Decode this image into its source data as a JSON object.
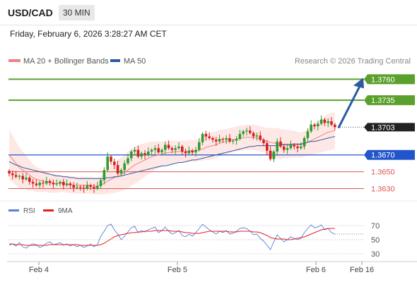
{
  "header": {
    "pair": "USD/CAD",
    "timeframe": "30 MIN",
    "datetime": "Friday, February 6, 2026 3:28:27 AM CET"
  },
  "legend": {
    "ma20_label": "MA 20 + Bollinger Bands",
    "ma20_color": "#f08080",
    "ma50_label": "MA 50",
    "ma50_color": "#2a5aa0",
    "copyright": "Research © 2026 Trading Central"
  },
  "rsi_legend": {
    "rsi_label": "RSI",
    "rsi_color": "#5b7fd6",
    "ma9_label": "9MA",
    "ma9_color": "#e02020"
  },
  "chart_data": [
    {
      "type": "candlestick",
      "title": "USD/CAD 30 MIN",
      "y_range": [
        1.3617,
        1.3772
      ],
      "levels": [
        {
          "value": "1.3760",
          "kind": "resistance",
          "color": "#5aa02c"
        },
        {
          "value": "1.3735",
          "kind": "resistance",
          "color": "#5aa02c"
        },
        {
          "value": "1.3703",
          "kind": "current",
          "color": "#222222"
        },
        {
          "value": "1.3670",
          "kind": "pivot",
          "color": "#2255cc"
        },
        {
          "value": "1.3650",
          "kind": "support",
          "color": "#e05555"
        },
        {
          "value": "1.3630",
          "kind": "support",
          "color": "#e05555"
        }
      ],
      "arrow": {
        "from": 1.3702,
        "to": 1.376,
        "direction": "up",
        "color": "#2a5aa0"
      },
      "x_ticks": [
        "Feb 4",
        "Feb 5",
        "Feb 6",
        "Feb 16"
      ],
      "closes": [
        1.3648,
        1.3646,
        1.3644,
        1.3645,
        1.3641,
        1.3643,
        1.3638,
        1.3636,
        1.3634,
        1.3637,
        1.3636,
        1.3639,
        1.3637,
        1.3635,
        1.3636,
        1.3638,
        1.3634,
        1.3636,
        1.3634,
        1.3631,
        1.3632,
        1.3631,
        1.363,
        1.3634,
        1.3632,
        1.363,
        1.3633,
        1.364,
        1.3652,
        1.3668,
        1.3662,
        1.3658,
        1.3648,
        1.3652,
        1.366,
        1.3666,
        1.3674,
        1.3676,
        1.3668,
        1.3672,
        1.367,
        1.3674,
        1.3676,
        1.3678,
        1.3673,
        1.3676,
        1.3682,
        1.3678,
        1.3676,
        1.3678,
        1.368,
        1.3674,
        1.3672,
        1.3675,
        1.3673,
        1.3676,
        1.3685,
        1.3695,
        1.3692,
        1.369,
        1.3688,
        1.3686,
        1.3689,
        1.3688,
        1.369,
        1.3686,
        1.3687,
        1.3689,
        1.3695,
        1.3698,
        1.3699,
        1.3696,
        1.3692,
        1.3693,
        1.3688,
        1.3684,
        1.3675,
        1.3665,
        1.3674,
        1.3686,
        1.368,
        1.3676,
        1.3678,
        1.3682,
        1.368,
        1.3678,
        1.368,
        1.369,
        1.3698,
        1.3706,
        1.3704,
        1.3707,
        1.3712,
        1.3708,
        1.371,
        1.3706,
        1.3703
      ],
      "ma20": [
        1.367,
        1.3665,
        1.366,
        1.3655,
        1.3652,
        1.3649,
        1.3646,
        1.3643,
        1.3641,
        1.364,
        1.3639,
        1.3638,
        1.3637,
        1.3636,
        1.3636,
        1.3636,
        1.3636,
        1.3635,
        1.3635,
        1.3634,
        1.3634,
        1.3634,
        1.3634,
        1.3634,
        1.3634,
        1.3633,
        1.3633,
        1.3634,
        1.3636,
        1.3639,
        1.3641,
        1.3643,
        1.3645,
        1.3647,
        1.3649,
        1.3652,
        1.3655,
        1.3658,
        1.366,
        1.3662,
        1.3664,
        1.3666,
        1.3668,
        1.3669,
        1.367,
        1.3671,
        1.3672,
        1.3673,
        1.3673,
        1.3674,
        1.3674,
        1.3674,
        1.3674,
        1.3675,
        1.3675,
        1.3675,
        1.3676,
        1.3677,
        1.3679,
        1.368,
        1.3681,
        1.3682,
        1.3684,
        1.3685,
        1.3686,
        1.3687,
        1.3688,
        1.3689,
        1.369,
        1.369,
        1.3691,
        1.3691,
        1.3691,
        1.369,
        1.3689,
        1.3688,
        1.3686,
        1.3685,
        1.3684,
        1.3684,
        1.3683,
        1.3683,
        1.3683,
        1.3683,
        1.3683,
        1.3682,
        1.3682,
        1.3683,
        1.3685,
        1.3687,
        1.3689,
        1.3691,
        1.3693,
        1.3695,
        1.3697,
        1.3698,
        1.3699
      ],
      "ma50": [
        1.3662,
        1.366,
        1.3658,
        1.3657,
        1.3655,
        1.3654,
        1.3653,
        1.3652,
        1.3651,
        1.365,
        1.3649,
        1.3648,
        1.3647,
        1.3646,
        1.3645,
        1.3645,
        1.3644,
        1.3644,
        1.3643,
        1.3643,
        1.3642,
        1.3642,
        1.3642,
        1.3642,
        1.3642,
        1.3642,
        1.3642,
        1.3642,
        1.3642,
        1.3643,
        1.3643,
        1.3644,
        1.3644,
        1.3645,
        1.3646,
        1.3647,
        1.3648,
        1.3649,
        1.365,
        1.3651,
        1.3652,
        1.3653,
        1.3654,
        1.3655,
        1.3656,
        1.3657,
        1.3657,
        1.3658,
        1.3659,
        1.366,
        1.3661,
        1.3661,
        1.3662,
        1.3663,
        1.3664,
        1.3664,
        1.3665,
        1.3666,
        1.3667,
        1.3668,
        1.3669,
        1.367,
        1.3671,
        1.3672,
        1.3673,
        1.3674,
        1.3675,
        1.3676,
        1.3677,
        1.3678,
        1.3679,
        1.368,
        1.368,
        1.3681,
        1.3681,
        1.3681,
        1.3681,
        1.3681,
        1.3681,
        1.3681,
        1.3682,
        1.3682,
        1.3682,
        1.3682,
        1.3683,
        1.3683,
        1.3683,
        1.3684,
        1.3685,
        1.3686,
        1.3686,
        1.3687,
        1.3688,
        1.3689,
        1.369,
        1.3691,
        1.3692
      ],
      "band_width": [
        30,
        28,
        26,
        24,
        22,
        20,
        18,
        16,
        15,
        14,
        13,
        12,
        12,
        11,
        11,
        10,
        10,
        10,
        10,
        10,
        10,
        10,
        10,
        10,
        10,
        10,
        10,
        11,
        13,
        15,
        17,
        18,
        19,
        20,
        21,
        22,
        22,
        22,
        22,
        21,
        20,
        19,
        18,
        17,
        16,
        15,
        15,
        14,
        14,
        13,
        13,
        13,
        13,
        13,
        13,
        13,
        13,
        14,
        15,
        16,
        16,
        16,
        16,
        15,
        15,
        15,
        15,
        15,
        15,
        15,
        15,
        15,
        15,
        15,
        15,
        15,
        16,
        17,
        18,
        18,
        18,
        17,
        17,
        16,
        16,
        15,
        15,
        15,
        16,
        17,
        18,
        19,
        20,
        21,
        22,
        22,
        22
      ]
    },
    {
      "type": "line",
      "title": "RSI",
      "y_ticks": [
        "70",
        "50",
        "30"
      ],
      "y_range": [
        20,
        80
      ],
      "series": [
        {
          "name": "RSI",
          "values": [
            42,
            44,
            41,
            46,
            40,
            38,
            42,
            44,
            43,
            39,
            41,
            45,
            47,
            43,
            44,
            46,
            42,
            44,
            41,
            43,
            40,
            42,
            39,
            41,
            44,
            40,
            43,
            55,
            62,
            70,
            72,
            64,
            58,
            50,
            55,
            61,
            67,
            69,
            60,
            63,
            61,
            64,
            66,
            68,
            60,
            63,
            68,
            62,
            58,
            60,
            63,
            56,
            54,
            58,
            55,
            60,
            66,
            72,
            68,
            64,
            61,
            58,
            62,
            60,
            63,
            58,
            59,
            62,
            66,
            67,
            66,
            62,
            57,
            58,
            52,
            48,
            42,
            36,
            47,
            57,
            52,
            47,
            50,
            54,
            52,
            50,
            52,
            60,
            66,
            71,
            67,
            68,
            71,
            64,
            66,
            60,
            58
          ]
        },
        {
          "name": "9MA",
          "values": [
            44,
            44,
            43,
            43,
            43,
            42,
            42,
            42,
            42,
            42,
            42,
            42,
            43,
            43,
            43,
            43,
            43,
            43,
            43,
            43,
            43,
            42,
            42,
            42,
            42,
            42,
            42,
            43,
            45,
            48,
            51,
            54,
            56,
            57,
            58,
            59,
            60,
            60,
            61,
            61,
            62,
            62,
            62,
            63,
            63,
            63,
            63,
            63,
            62,
            62,
            62,
            61,
            60,
            60,
            59,
            59,
            59,
            60,
            61,
            62,
            62,
            62,
            62,
            62,
            62,
            61,
            61,
            61,
            62,
            62,
            62,
            62,
            61,
            61,
            60,
            58,
            56,
            53,
            52,
            51,
            51,
            51,
            50,
            50,
            51,
            52,
            53,
            54,
            56,
            58,
            60,
            62,
            64,
            65,
            66,
            66,
            66
          ]
        }
      ]
    }
  ]
}
